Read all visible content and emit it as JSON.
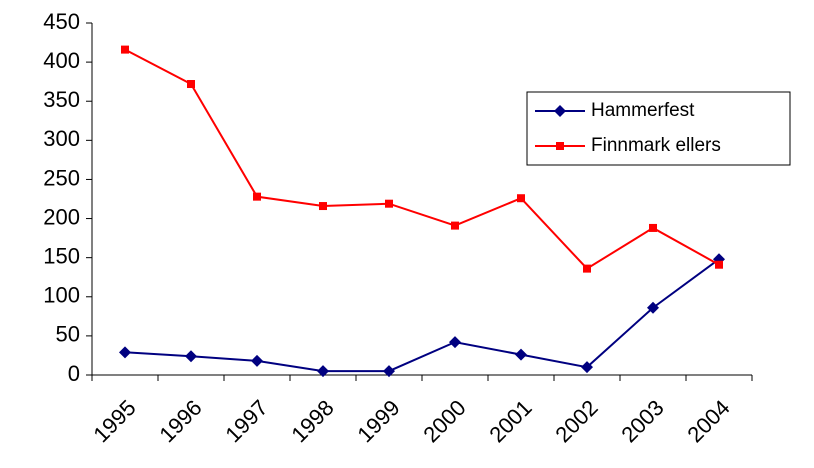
{
  "chart_data": {
    "type": "line",
    "categories": [
      "1995",
      "1996",
      "1997",
      "1998",
      "1999",
      "2000",
      "2001",
      "2002",
      "2003",
      "2004"
    ],
    "series": [
      {
        "name": "Hammerfest",
        "color": "#000080",
        "marker": "diamond",
        "values": [
          29,
          24,
          18,
          5,
          5,
          42,
          26,
          10,
          86,
          148
        ]
      },
      {
        "name": "Finnmark ellers",
        "color": "#ff0000",
        "marker": "square",
        "values": [
          416,
          372,
          228,
          216,
          219,
          191,
          226,
          136,
          188,
          141
        ]
      }
    ],
    "ylim": [
      0,
      450
    ],
    "yticks": [
      0,
      50,
      100,
      150,
      200,
      250,
      300,
      350,
      400,
      450
    ],
    "grid": false,
    "legend": "upper right"
  }
}
